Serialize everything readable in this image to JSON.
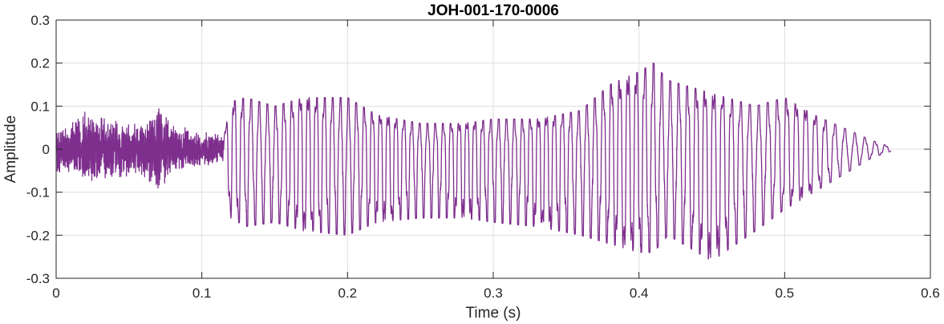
{
  "chart_data": {
    "type": "line",
    "title": "JOH-001-170-0006",
    "xlabel": "Time (s)",
    "ylabel": "Amplitude",
    "xlim": [
      0,
      0.6
    ],
    "ylim": [
      -0.3,
      0.3
    ],
    "x_ticks": [
      "0",
      "0.1",
      "0.2",
      "0.3",
      "0.4",
      "0.5",
      "0.6"
    ],
    "y_ticks": [
      "0.3",
      "0.2",
      "0.1",
      "0",
      "-0.1",
      "-0.2",
      "-0.3"
    ],
    "grid": true,
    "line_color": "#7E2F8E",
    "series": [
      {
        "name": "",
        "signal_end_s": 0.573,
        "envelope_s": [
          0,
          0.02,
          0.04,
          0.06,
          0.07,
          0.08,
          0.1,
          0.115,
          0.12,
          0.13,
          0.15,
          0.17,
          0.2,
          0.22,
          0.25,
          0.28,
          0.3,
          0.33,
          0.36,
          0.38,
          0.4,
          0.41,
          0.42,
          0.45,
          0.48,
          0.5,
          0.52,
          0.54,
          0.56,
          0.573
        ],
        "envelope_max": [
          0.04,
          0.08,
          0.06,
          0.06,
          0.1,
          0.05,
          0.04,
          0.03,
          0.11,
          0.12,
          0.1,
          0.12,
          0.12,
          0.08,
          0.06,
          0.06,
          0.07,
          0.07,
          0.09,
          0.15,
          0.18,
          0.2,
          0.16,
          0.13,
          0.1,
          0.12,
          0.08,
          0.05,
          0.02,
          0.005
        ],
        "envelope_min": [
          -0.05,
          -0.07,
          -0.06,
          -0.06,
          -0.09,
          -0.05,
          -0.04,
          -0.03,
          -0.16,
          -0.18,
          -0.17,
          -0.19,
          -0.2,
          -0.17,
          -0.16,
          -0.16,
          -0.17,
          -0.18,
          -0.2,
          -0.22,
          -0.24,
          -0.24,
          -0.2,
          -0.26,
          -0.19,
          -0.14,
          -0.1,
          -0.06,
          -0.02,
          -0.005
        ]
      }
    ]
  }
}
